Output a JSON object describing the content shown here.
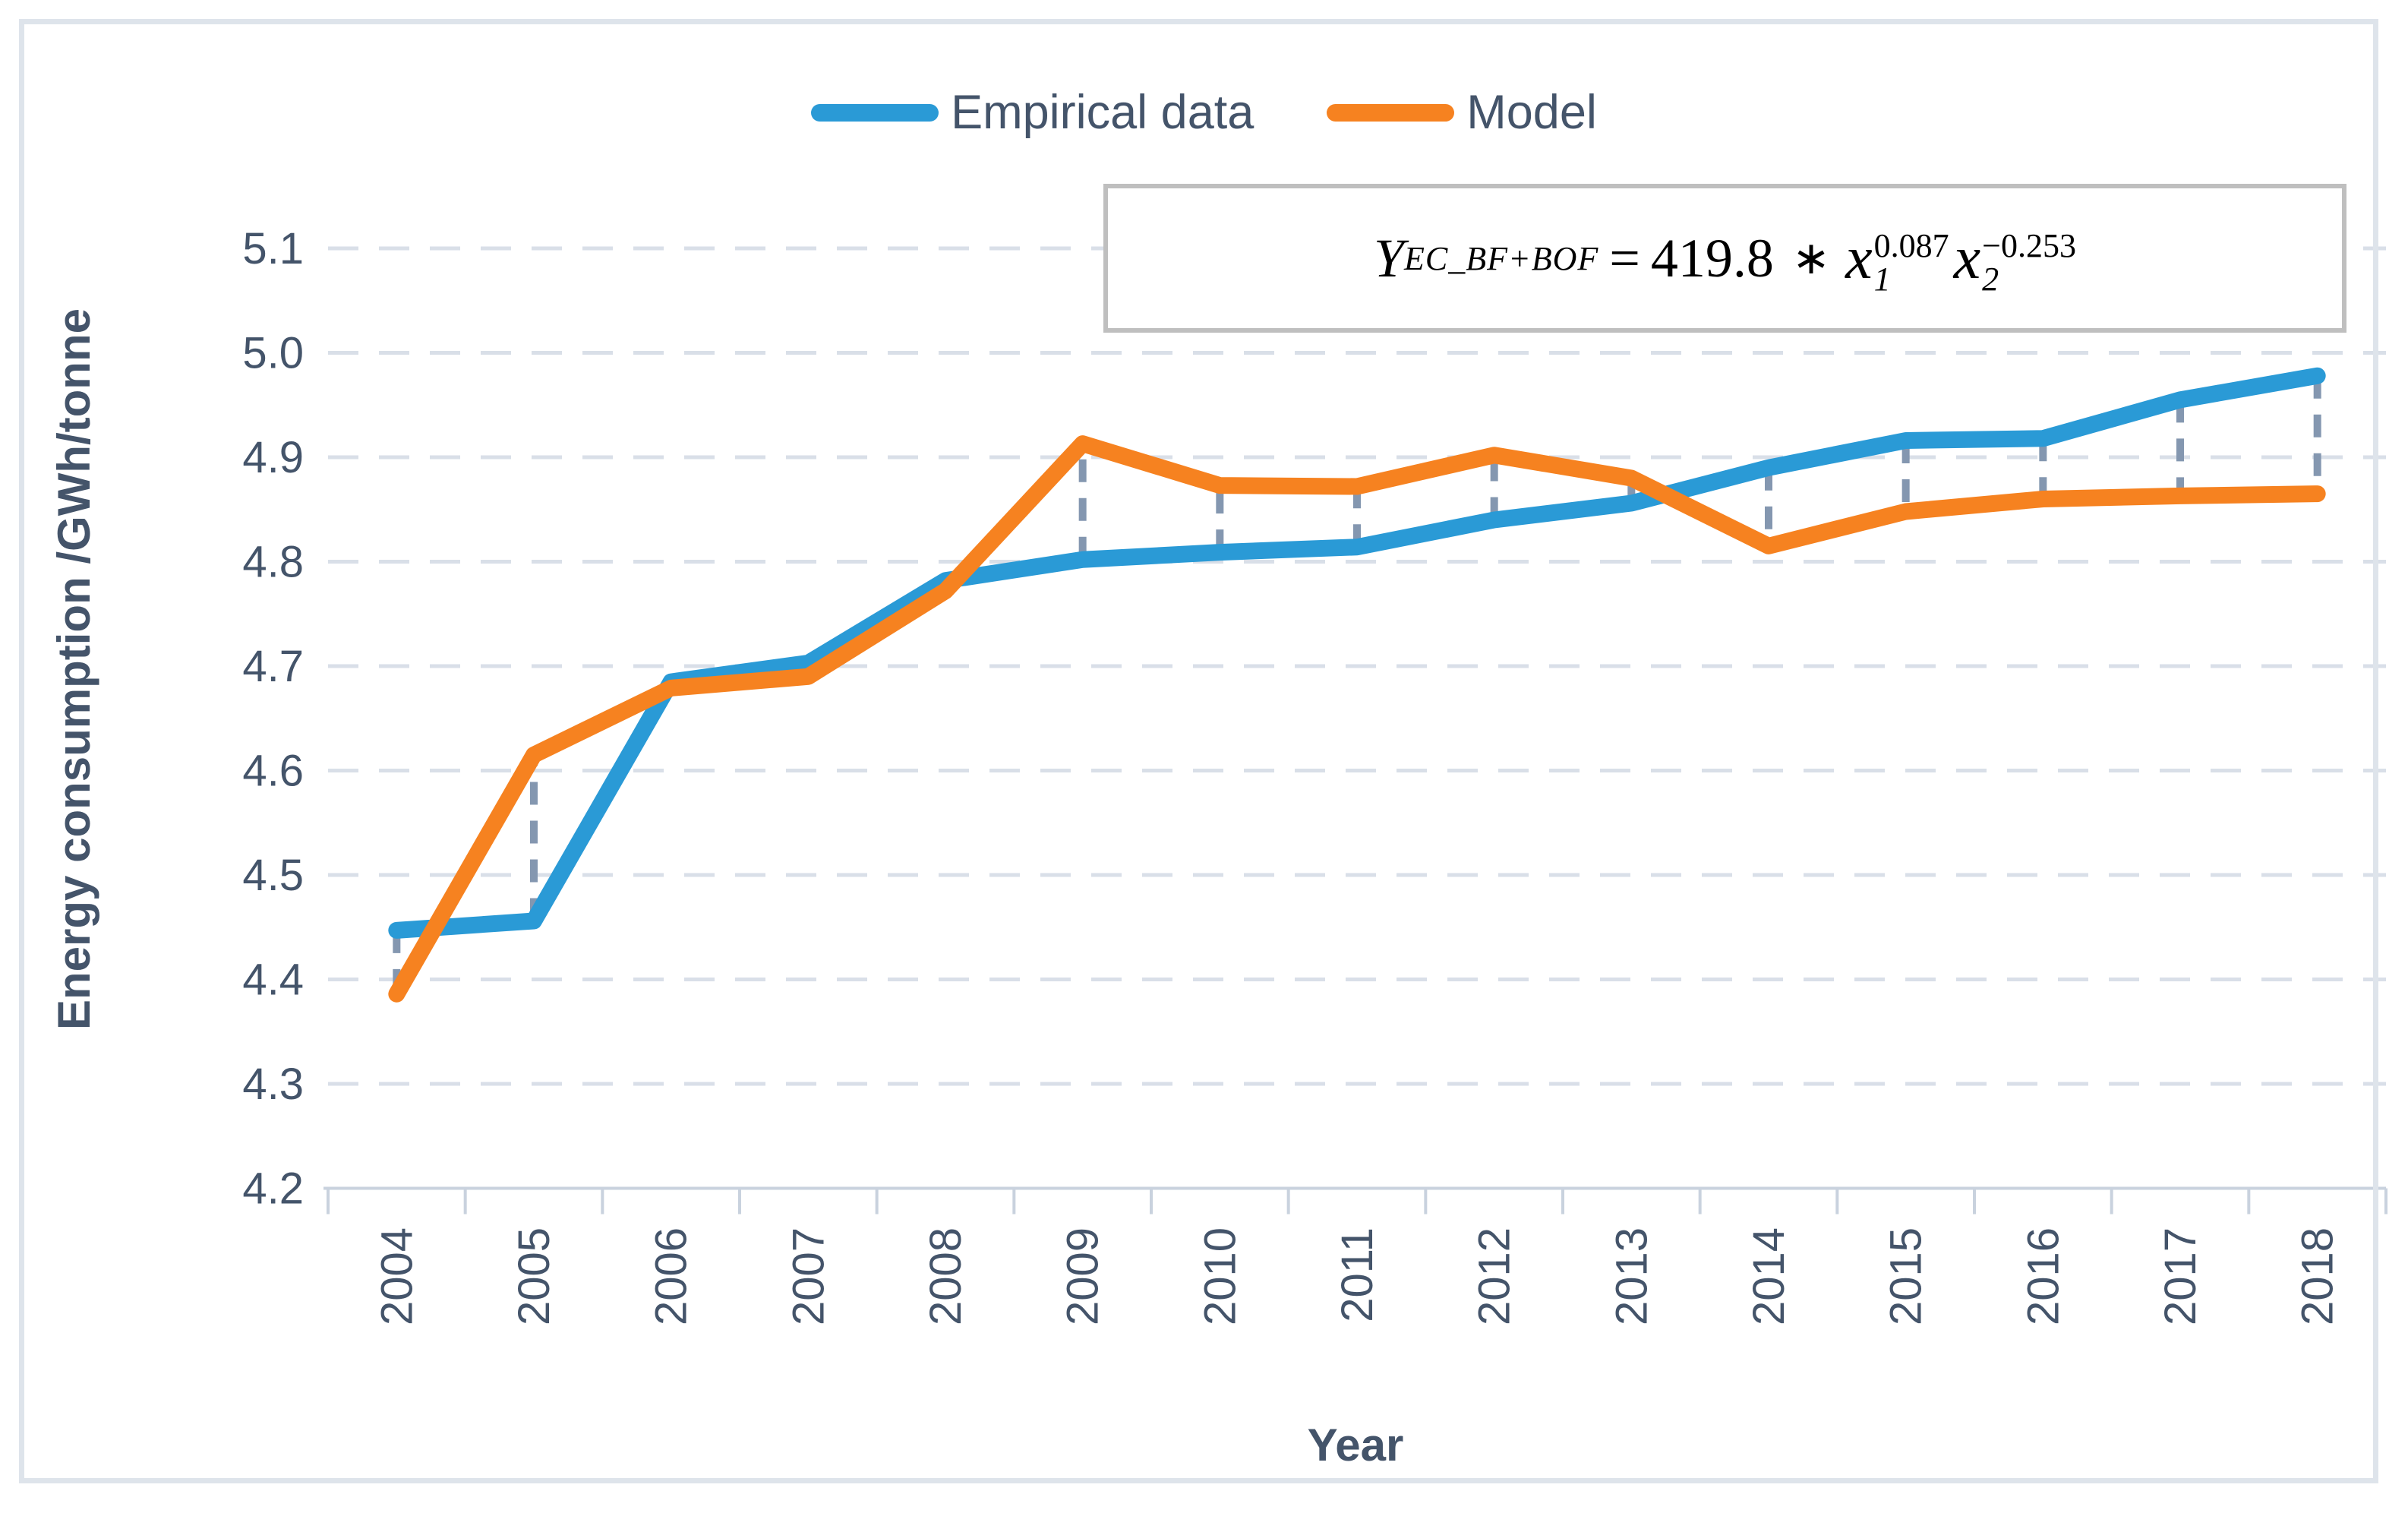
{
  "colors": {
    "empirical": "#2A9AD6",
    "model": "#F68220",
    "axis_text": "#44546A",
    "gridline": "#D9DFE8",
    "axis_line": "#C9D2DE",
    "connector": "#8497B0",
    "formula_box_border": "#BFBFBF",
    "page_border": "#DEE4EB"
  },
  "legend": {
    "items": [
      {
        "label": "Empirical data"
      },
      {
        "label": "Model"
      }
    ]
  },
  "formula": {
    "lhs_base": "Y",
    "lhs_sub": "EC_BF+BOF",
    "equals": "=",
    "coefficient": "419.8",
    "operator": "∗",
    "terms": [
      {
        "base": "x",
        "sub": "1",
        "sup": "0.087"
      },
      {
        "base": "x",
        "sub": "2",
        "sup": "−0.253"
      }
    ]
  },
  "axes": {
    "y_title": "Energy consumption /GWh/tonne",
    "x_title": "Year",
    "y_tick_labels": [
      "5.1",
      "5.0",
      "4.9",
      "4.8",
      "4.7",
      "4.6",
      "4.5",
      "4.4",
      "4.3",
      "4.2"
    ]
  },
  "chart_data": {
    "type": "line",
    "title": "",
    "x": [
      "2004",
      "2005",
      "2006",
      "2007",
      "2008",
      "2009",
      "2010",
      "2011",
      "2012",
      "2013",
      "2014",
      "2015",
      "2016",
      "2017",
      "2018"
    ],
    "series": [
      {
        "name": "Empirical data",
        "color": "#2A9AD6",
        "values": [
          4.447,
          4.456,
          4.685,
          4.703,
          4.782,
          4.802,
          4.809,
          4.814,
          4.84,
          4.856,
          4.89,
          4.916,
          4.918,
          4.955,
          4.978
        ]
      },
      {
        "name": "Model",
        "color": "#F68220",
        "values": [
          4.386,
          4.615,
          4.679,
          4.69,
          4.772,
          4.913,
          4.873,
          4.872,
          4.902,
          4.88,
          4.815,
          4.848,
          4.86,
          4.863,
          4.865
        ]
      }
    ],
    "xlabel": "Year",
    "ylabel": "Energy consumption /GWh/tonne",
    "ylim": [
      4.2,
      5.1
    ],
    "ytick_step": 0.1,
    "grid": "horizontal-dashed",
    "legend_position": "top-center",
    "residual_connectors": true,
    "annotation_formula": "Y_EC_BF+BOF = 419.8 ∗ x1^0.087 x2^−0.253"
  }
}
